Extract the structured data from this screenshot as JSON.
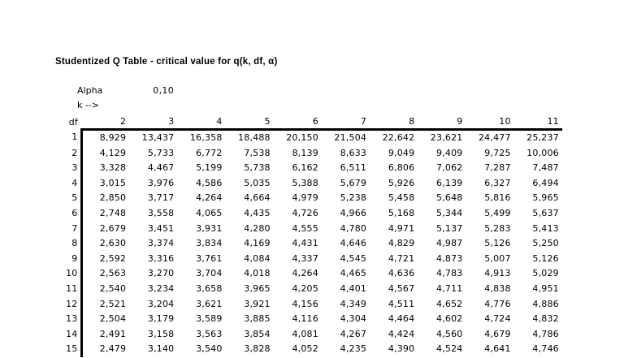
{
  "title": "Studentized Q Table - critical value for q(k, df, α)",
  "params": {
    "alpha_label": "Alpha",
    "alpha_value": "0,10",
    "k_label": "k -->"
  },
  "chart_data": {
    "type": "table",
    "title": "Studentized Q Table - critical value for q(k, df, α)",
    "alpha": "0,10",
    "decimal_separator": ",",
    "corner_header": "df",
    "k_values": [
      "2",
      "3",
      "4",
      "5",
      "6",
      "7",
      "8",
      "9",
      "10",
      "11"
    ],
    "rows": [
      {
        "df": "1",
        "values": [
          "8,929",
          "13,437",
          "16,358",
          "18,488",
          "20,150",
          "21,504",
          "22,642",
          "23,621",
          "24,477",
          "25,237"
        ]
      },
      {
        "df": "2",
        "values": [
          "4,129",
          "5,733",
          "6,772",
          "7,538",
          "8,139",
          "8,633",
          "9,049",
          "9,409",
          "9,725",
          "10,006"
        ]
      },
      {
        "df": "3",
        "values": [
          "3,328",
          "4,467",
          "5,199",
          "5,738",
          "6,162",
          "6,511",
          "6,806",
          "7,062",
          "7,287",
          "7,487"
        ]
      },
      {
        "df": "4",
        "values": [
          "3,015",
          "3,976",
          "4,586",
          "5,035",
          "5,388",
          "5,679",
          "5,926",
          "6,139",
          "6,327",
          "6,494"
        ]
      },
      {
        "df": "5",
        "values": [
          "2,850",
          "3,717",
          "4,264",
          "4,664",
          "4,979",
          "5,238",
          "5,458",
          "5,648",
          "5,816",
          "5,965"
        ]
      },
      {
        "df": "6",
        "values": [
          "2,748",
          "3,558",
          "4,065",
          "4,435",
          "4,726",
          "4,966",
          "5,168",
          "5,344",
          "5,499",
          "5,637"
        ]
      },
      {
        "df": "7",
        "values": [
          "2,679",
          "3,451",
          "3,931",
          "4,280",
          "4,555",
          "4,780",
          "4,971",
          "5,137",
          "5,283",
          "5,413"
        ]
      },
      {
        "df": "8",
        "values": [
          "2,630",
          "3,374",
          "3,834",
          "4,169",
          "4,431",
          "4,646",
          "4,829",
          "4,987",
          "5,126",
          "5,250"
        ]
      },
      {
        "df": "9",
        "values": [
          "2,592",
          "3,316",
          "3,761",
          "4,084",
          "4,337",
          "4,545",
          "4,721",
          "4,873",
          "5,007",
          "5,126"
        ]
      },
      {
        "df": "10",
        "values": [
          "2,563",
          "3,270",
          "3,704",
          "4,018",
          "4,264",
          "4,465",
          "4,636",
          "4,783",
          "4,913",
          "5,029"
        ]
      },
      {
        "df": "11",
        "values": [
          "2,540",
          "3,234",
          "3,658",
          "3,965",
          "4,205",
          "4,401",
          "4,567",
          "4,711",
          "4,838",
          "4,951"
        ]
      },
      {
        "df": "12",
        "values": [
          "2,521",
          "3,204",
          "3,621",
          "3,921",
          "4,156",
          "4,349",
          "4,511",
          "4,652",
          "4,776",
          "4,886"
        ]
      },
      {
        "df": "13",
        "values": [
          "2,504",
          "3,179",
          "3,589",
          "3,885",
          "4,116",
          "4,304",
          "4,464",
          "4,602",
          "4,724",
          "4,832"
        ]
      },
      {
        "df": "14",
        "values": [
          "2,491",
          "3,158",
          "3,563",
          "3,854",
          "4,081",
          "4,267",
          "4,424",
          "4,560",
          "4,679",
          "4,786"
        ]
      },
      {
        "df": "15",
        "values": [
          "2,479",
          "3,140",
          "3,540",
          "3,828",
          "4,052",
          "4,235",
          "4,390",
          "4,524",
          "4,641",
          "4,746"
        ]
      }
    ]
  },
  "colors": {
    "background": "#ffffff",
    "text": "#000000",
    "border": "#000000"
  }
}
